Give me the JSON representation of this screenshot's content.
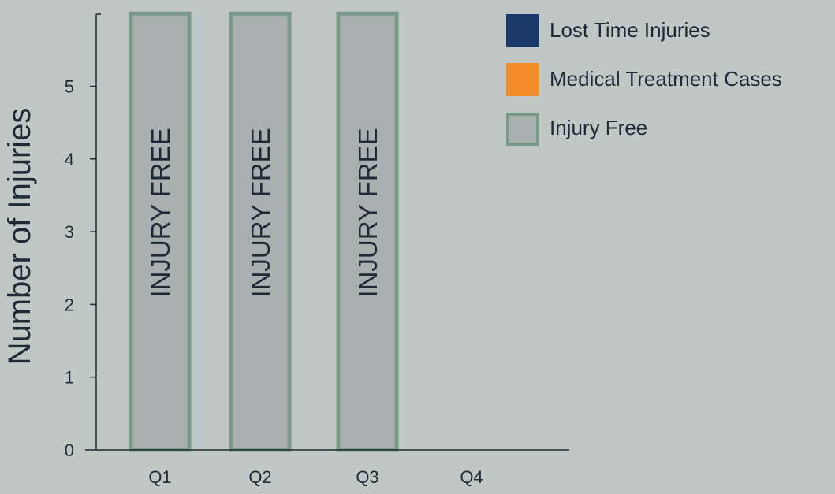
{
  "chart_data": {
    "type": "bar",
    "categories": [
      "Q1",
      "Q2",
      "Q3",
      "Q4"
    ],
    "ylabel": "Number of Injuries",
    "ylim": [
      0,
      6
    ],
    "yticks": [
      0,
      1,
      2,
      3,
      4,
      5
    ],
    "grid": false,
    "legend_position": "top-right",
    "series": [
      {
        "name": "Lost Time Injuries",
        "color": "#1a3a6b",
        "values": [
          0,
          0,
          0,
          0
        ]
      },
      {
        "name": "Medical Treatment Cases",
        "color": "#f28c28",
        "values": [
          0,
          0,
          0,
          0
        ]
      },
      {
        "name": "Injury Free",
        "color": "#a9b1b0",
        "border_color": "#7a9a88",
        "values": [
          6,
          6,
          6,
          0
        ]
      }
    ],
    "bar_annotations": [
      "INJURY FREE",
      "INJURY FREE",
      "INJURY FREE",
      ""
    ]
  }
}
